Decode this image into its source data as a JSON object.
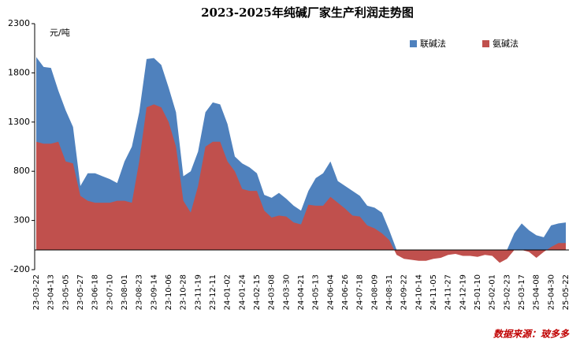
{
  "chart_data": {
    "type": "area",
    "title": "2023-2025年纯碱厂家生产利润走势图",
    "y_label": "元/吨",
    "source": "数据来源：玻多多",
    "ylim": [
      -200,
      2300
    ],
    "yticks": [
      -200,
      300,
      800,
      1300,
      1800,
      2300
    ],
    "grid": false,
    "legend": "top-right",
    "categories": [
      "23-03-22",
      null,
      "23-04-13",
      null,
      "23-05-05",
      null,
      "23-05-27",
      null,
      "23-06-18",
      null,
      "23-07-10",
      null,
      "23-08-01",
      null,
      "23-08-23",
      null,
      "23-09-14",
      null,
      "23-10-06",
      null,
      "23-10-28",
      null,
      "23-11-19",
      null,
      "23-12-11",
      null,
      "24-01-02",
      null,
      "24-01-24",
      null,
      "24-02-15",
      null,
      "24-03-08",
      null,
      "24-03-30",
      null,
      "24-04-21",
      null,
      "24-05-13",
      null,
      "24-06-04",
      null,
      "24-06-26",
      null,
      "24-07-18",
      null,
      "24-08-09",
      null,
      "24-08-31",
      null,
      "24-09-22",
      null,
      "24-10-14",
      null,
      "24-11-05",
      null,
      "24-11-27",
      null,
      "24-12-19",
      null,
      "25-01-10",
      null,
      "25-02-01",
      null,
      "25-02-23",
      null,
      "25-03-17",
      null,
      "25-04-08",
      null,
      "25-04-30",
      null,
      "25-05-22"
    ],
    "series": [
      {
        "name": "联碱法",
        "color": "#4f81bd",
        "values": [
          1960,
          1860,
          1850,
          1620,
          1420,
          1250,
          650,
          780,
          780,
          750,
          720,
          680,
          900,
          1050,
          1400,
          1940,
          1950,
          1880,
          1650,
          1400,
          750,
          800,
          1000,
          1400,
          1500,
          1480,
          1280,
          950,
          880,
          840,
          780,
          560,
          530,
          580,
          520,
          450,
          400,
          600,
          730,
          780,
          900,
          700,
          650,
          600,
          550,
          450,
          430,
          380,
          200,
          0,
          0,
          0,
          0,
          0,
          0,
          0,
          0,
          0,
          0,
          0,
          0,
          0,
          0,
          0,
          0,
          170,
          270,
          200,
          150,
          130,
          250,
          270,
          280
        ]
      },
      {
        "name": "氨碱法",
        "color": "#c0504d",
        "values": [
          1100,
          1080,
          1080,
          1100,
          900,
          880,
          550,
          500,
          480,
          480,
          480,
          500,
          500,
          480,
          900,
          1450,
          1480,
          1450,
          1300,
          1050,
          500,
          380,
          650,
          1050,
          1100,
          1100,
          900,
          800,
          620,
          600,
          600,
          400,
          330,
          350,
          340,
          280,
          260,
          460,
          450,
          450,
          540,
          480,
          420,
          350,
          340,
          250,
          220,
          170,
          100,
          -50,
          -90,
          -100,
          -110,
          -110,
          -90,
          -80,
          -50,
          -40,
          -60,
          -60,
          -70,
          -50,
          -60,
          -130,
          -90,
          0,
          0,
          -20,
          -80,
          -20,
          30,
          70,
          70
        ]
      }
    ]
  }
}
